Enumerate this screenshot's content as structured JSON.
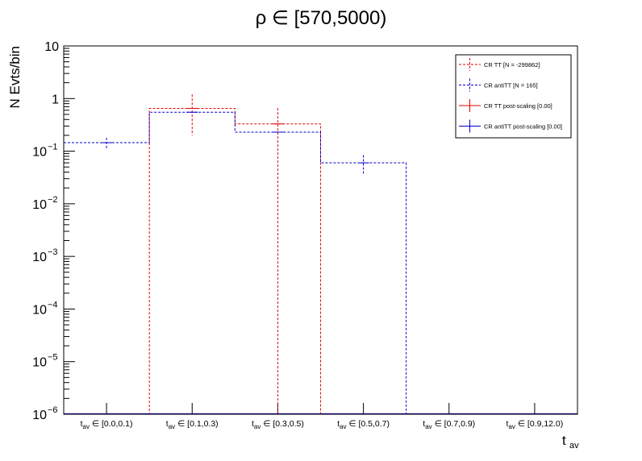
{
  "chart_data": {
    "type": "bar",
    "title": "ρ ∈ [570,5000)",
    "xlabel": "t",
    "xlabel_sub": "av",
    "ylabel": "N Evts/bin",
    "y_scale": "log",
    "ylim": [
      1e-06,
      10
    ],
    "categories": [
      {
        "sub": "av",
        "range": "∈ [0.0,0.1)"
      },
      {
        "sub": "av",
        "range": "∈ [0.1,0.3)"
      },
      {
        "sub": "av",
        "range": "∈ [0.3,0.5)"
      },
      {
        "sub": "av",
        "range": "∈ [0.5,0.7)"
      },
      {
        "sub": "av",
        "range": "∈ [0.7,0.9)"
      },
      {
        "sub": "av",
        "range": "∈ [0.9,12.0)"
      }
    ],
    "y_ticks": [
      {
        "value": 1e-06,
        "base": "10",
        "exp": "−6"
      },
      {
        "value": 1e-05,
        "base": "10",
        "exp": "−5"
      },
      {
        "value": 0.0001,
        "base": "10",
        "exp": "−4"
      },
      {
        "value": 0.001,
        "base": "10",
        "exp": "−3"
      },
      {
        "value": 0.01,
        "base": "10",
        "exp": "−2"
      },
      {
        "value": 0.1,
        "base": "10",
        "exp": "−1"
      },
      {
        "value": 1,
        "base": "1",
        "exp": ""
      },
      {
        "value": 10,
        "base": "10",
        "exp": ""
      }
    ],
    "series": [
      {
        "name": "CR TT [N = -299862]",
        "color": "#e00000",
        "style": "dashed",
        "values": [
          0,
          0.65,
          0.33,
          0,
          0,
          0
        ],
        "errors_low": [
          0,
          0.45,
          0.33,
          0,
          0,
          0
        ],
        "errors_high": [
          0,
          0.55,
          0.33,
          0,
          0,
          0
        ]
      },
      {
        "name": "CR antiTT [N = 165]",
        "color": "#0000cc",
        "style": "dashed",
        "values": [
          0.145,
          0.55,
          0.23,
          0.06,
          0,
          0
        ],
        "errors_low": [
          0.035,
          0,
          0,
          0.024,
          0,
          0
        ],
        "errors_high": [
          0.035,
          0,
          0,
          0.024,
          0,
          0
        ]
      },
      {
        "name": "CR TT post-scaling [0.00]",
        "color": "#e00000",
        "style": "solid",
        "values": [
          0,
          0,
          0,
          0,
          0,
          0
        ]
      },
      {
        "name": "CR antiTT post-scaling [0.00]",
        "color": "#0000cc",
        "style": "solid",
        "values": [
          0,
          0,
          0,
          0,
          0,
          0
        ]
      }
    ],
    "legend_position": "top-right",
    "grid": false
  }
}
